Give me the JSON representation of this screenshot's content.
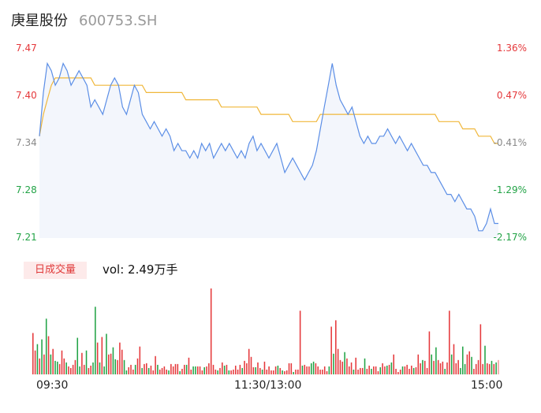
{
  "header": {
    "name": "庚星股份",
    "code": "600753.SH"
  },
  "volume_section": {
    "badge": "日成交量",
    "label": "vol: 2.49万手"
  },
  "colors": {
    "up": "#e5383b",
    "down": "#22a346",
    "price_line": "#5b8ee6",
    "avg_line": "#f0b73a",
    "area_fill": "#f3f6fc"
  },
  "chart_data": [
    {
      "type": "line",
      "prev_close": 7.37,
      "y_left_ticks": [
        "7.47",
        "7.40",
        "7.34",
        "7.28",
        "7.21"
      ],
      "y_right_ticks": [
        "1.36%",
        "0.47%",
        "-0.41%",
        "-1.29%",
        "-2.17%"
      ],
      "ylim": [
        7.21,
        7.47
      ],
      "x_ticks": [
        "09:30",
        "11:30/13:00",
        "15:00"
      ],
      "series": [
        {
          "values": [
            7.35,
            7.41,
            7.45,
            7.44,
            7.42,
            7.43,
            7.45,
            7.44,
            7.42,
            7.43,
            7.44,
            7.43,
            7.42,
            7.39,
            7.4,
            7.39,
            7.38,
            7.4,
            7.42,
            7.43,
            7.42,
            7.39,
            7.38,
            7.4,
            7.42,
            7.41,
            7.38,
            7.37,
            7.36,
            7.37,
            7.36,
            7.35,
            7.36,
            7.35,
            7.33,
            7.34,
            7.33,
            7.33,
            7.32,
            7.33,
            7.32,
            7.34,
            7.33,
            7.34,
            7.32,
            7.33,
            7.34,
            7.33,
            7.34,
            7.33,
            7.32,
            7.33,
            7.32,
            7.34,
            7.35,
            7.33,
            7.34,
            7.33,
            7.32,
            7.33,
            7.34,
            7.32,
            7.3,
            7.31,
            7.32,
            7.31,
            7.3,
            7.29,
            7.3,
            7.31,
            7.33,
            7.36,
            7.39,
            7.42,
            7.45,
            7.42,
            7.4,
            7.39,
            7.38,
            7.39,
            7.37,
            7.35,
            7.34,
            7.35,
            7.34,
            7.34,
            7.35,
            7.35,
            7.36,
            7.35,
            7.34,
            7.35,
            7.34,
            7.33,
            7.34,
            7.33,
            7.32,
            7.31,
            7.31,
            7.3,
            7.3,
            7.29,
            7.28,
            7.27,
            7.27,
            7.26,
            7.27,
            7.26,
            7.25,
            7.25,
            7.24,
            7.22,
            7.22,
            7.23,
            7.25,
            7.23,
            7.23
          ],
          "avg_values": [
            7.35,
            7.38,
            7.4,
            7.42,
            7.43,
            7.43,
            7.43,
            7.43,
            7.43,
            7.43,
            7.43,
            7.43,
            7.43,
            7.43,
            7.42,
            7.42,
            7.42,
            7.42,
            7.42,
            7.42,
            7.42,
            7.42,
            7.42,
            7.42,
            7.42,
            7.42,
            7.42,
            7.41,
            7.41,
            7.41,
            7.41,
            7.41,
            7.41,
            7.41,
            7.41,
            7.41,
            7.41,
            7.4,
            7.4,
            7.4,
            7.4,
            7.4,
            7.4,
            7.4,
            7.4,
            7.4,
            7.39,
            7.39,
            7.39,
            7.39,
            7.39,
            7.39,
            7.39,
            7.39,
            7.39,
            7.39,
            7.38,
            7.38,
            7.38,
            7.38,
            7.38,
            7.38,
            7.38,
            7.38,
            7.37,
            7.37,
            7.37,
            7.37,
            7.37,
            7.37,
            7.37,
            7.38,
            7.38,
            7.38,
            7.38,
            7.38,
            7.38,
            7.38,
            7.38,
            7.38,
            7.38,
            7.38,
            7.38,
            7.38,
            7.38,
            7.38,
            7.38,
            7.38,
            7.38,
            7.38,
            7.38,
            7.38,
            7.38,
            7.38,
            7.38,
            7.38,
            7.38,
            7.38,
            7.38,
            7.38,
            7.38,
            7.37,
            7.37,
            7.37,
            7.37,
            7.37,
            7.37,
            7.36,
            7.36,
            7.36,
            7.36,
            7.35,
            7.35,
            7.35,
            7.35,
            7.34,
            7.34
          ]
        }
      ]
    },
    {
      "type": "bar",
      "values": [
        52,
        30,
        38,
        20,
        44,
        25,
        70,
        48,
        25,
        32,
        17,
        16,
        13,
        30,
        20,
        15,
        10,
        8,
        12,
        18,
        46,
        10,
        27,
        12,
        30,
        8,
        11,
        15,
        85,
        40,
        15,
        47,
        10,
        51,
        25,
        26,
        34,
        19,
        18,
        40,
        31,
        18,
        5,
        9,
        12,
        6,
        12,
        20,
        35,
        8,
        13,
        14,
        8,
        11,
        5,
        23,
        12,
        6,
        8,
        10,
        6,
        5,
        13,
        10,
        13,
        13,
        4,
        7,
        12,
        12,
        21,
        6,
        10,
        10,
        10,
        10,
        5,
        9,
        10,
        14,
        108,
        12,
        6,
        5,
        8,
        15,
        11,
        12,
        5,
        5,
        6,
        11,
        6,
        12,
        8,
        17,
        14,
        32,
        22,
        9,
        9,
        15,
        8,
        6,
        16,
        6,
        10,
        5,
        5,
        10,
        11,
        8,
        5,
        4,
        5,
        14,
        14,
        3,
        6,
        6,
        80,
        11,
        12,
        10,
        10,
        14,
        16,
        14,
        10,
        6,
        6,
        10,
        4,
        10,
        60,
        26,
        68,
        32,
        18,
        16,
        28,
        20,
        10,
        15,
        6,
        21,
        6,
        8,
        8,
        20,
        7,
        11,
        7,
        10,
        10,
        4,
        9,
        14,
        10,
        11,
        12,
        15,
        25,
        7,
        3,
        6,
        10,
        10,
        12,
        7,
        11,
        8,
        9,
        25,
        14,
        18,
        17,
        8,
        54,
        25,
        17,
        34,
        18,
        14,
        16,
        7,
        15,
        80,
        25,
        38,
        14,
        18,
        8,
        35,
        13,
        25,
        29,
        22,
        7,
        13,
        18,
        63,
        13,
        36,
        14,
        13,
        17,
        13,
        15,
        18
      ],
      "colors": [
        "up",
        "up",
        "down",
        "up",
        "down",
        "up",
        "down",
        "up",
        "down",
        "up",
        "down",
        "down",
        "up",
        "up",
        "up",
        "down",
        "up",
        "up",
        "up",
        "up",
        "down",
        "down",
        "up",
        "up",
        "down",
        "up",
        "up",
        "down",
        "down",
        "up",
        "down",
        "up",
        "down",
        "down",
        "up",
        "up",
        "down",
        "down",
        "up",
        "up",
        "up",
        "down",
        "down",
        "up",
        "up",
        "up",
        "down",
        "up",
        "up",
        "down",
        "up",
        "up",
        "down",
        "up",
        "up",
        "up",
        "down",
        "up",
        "up",
        "up",
        "up",
        "down",
        "up",
        "up",
        "up",
        "up",
        "down",
        "up",
        "up",
        "down",
        "up",
        "up",
        "down",
        "down",
        "up",
        "up",
        "up",
        "down",
        "up",
        "up",
        "up",
        "up",
        "up",
        "down",
        "up",
        "up",
        "down",
        "up",
        "down",
        "up",
        "up",
        "up",
        "up",
        "up",
        "down",
        "up",
        "up",
        "up",
        "up",
        "up",
        "down",
        "up",
        "up",
        "down",
        "up",
        "up",
        "up",
        "up",
        "up",
        "up",
        "down",
        "up",
        "down",
        "up",
        "up",
        "up",
        "up",
        "down",
        "up",
        "up",
        "up",
        "down",
        "up",
        "up",
        "up",
        "down",
        "down",
        "up",
        "up",
        "up",
        "up",
        "up",
        "up",
        "down",
        "up",
        "down",
        "up",
        "up",
        "up",
        "up",
        "down",
        "up",
        "up",
        "up",
        "down",
        "up",
        "up",
        "up",
        "up",
        "down",
        "up",
        "up",
        "down",
        "up",
        "up",
        "up",
        "down",
        "up",
        "up",
        "down",
        "up",
        "down",
        "up",
        "up",
        "up",
        "up",
        "down",
        "up",
        "up",
        "up",
        "up",
        "down",
        "up",
        "up",
        "up",
        "down",
        "up",
        "up",
        "up",
        "down",
        "up",
        "down",
        "up",
        "up",
        "up",
        "down",
        "up",
        "up",
        "down",
        "up",
        "up",
        "up",
        "down",
        "down",
        "down",
        "up",
        "up",
        "down",
        "up",
        "up",
        "up",
        "up",
        "up",
        "down",
        "up",
        "up",
        "down",
        "up",
        "down",
        "up",
        "up",
        "up",
        "up",
        "up"
      ]
    }
  ]
}
